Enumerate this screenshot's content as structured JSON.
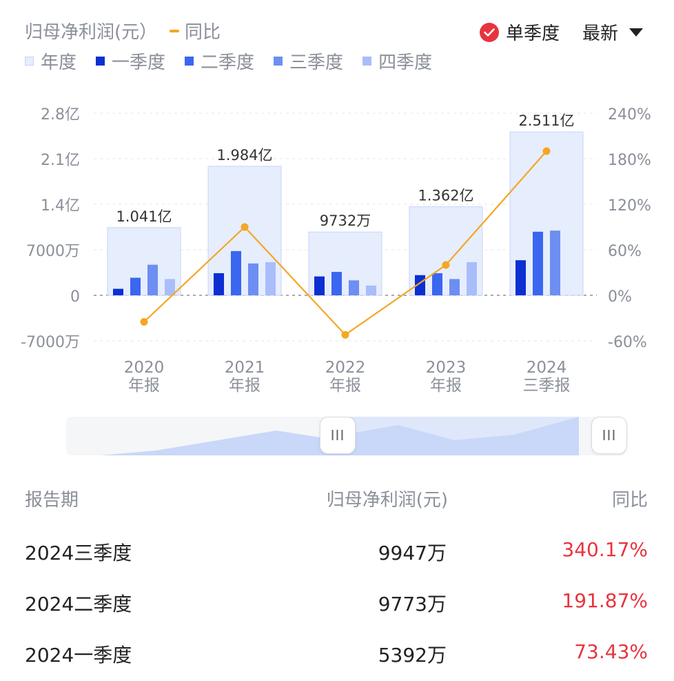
{
  "header": {
    "title": "归母净利润(元）",
    "yoy_label": "同比",
    "toggle_label": "单季度",
    "latest_label": "最新"
  },
  "legend": [
    {
      "label": "年度",
      "color": "#e6edfd"
    },
    {
      "label": "一季度",
      "color": "#0b2fd1"
    },
    {
      "label": "二季度",
      "color": "#3a66f0"
    },
    {
      "label": "三季度",
      "color": "#6d8ef2"
    },
    {
      "label": "四季度",
      "color": "#a9bdfa"
    }
  ],
  "colors": {
    "annual": "#e6edfd",
    "annual_border": "#c7d4fb",
    "q1": "#0b2fd1",
    "q2": "#3a66f0",
    "q3": "#6d8ef2",
    "q4": "#a9bdfa",
    "line": "#f5a623",
    "positive": "#e8343f"
  },
  "chart_data": {
    "type": "bar",
    "categories": [
      [
        "2020",
        "年报"
      ],
      [
        "2021",
        "年报"
      ],
      [
        "2022",
        "年报"
      ],
      [
        "2023",
        "年报"
      ],
      [
        "2024",
        "三季报"
      ]
    ],
    "annual_values": [
      10410,
      19840,
      9732,
      13620,
      25110
    ],
    "annual_labels": [
      "1.041亿",
      "1.984亿",
      "9732万",
      "1.362亿",
      "2.511亿"
    ],
    "series": [
      {
        "name": "一季度",
        "values": [
          1000,
          3400,
          2900,
          3100,
          5392
        ]
      },
      {
        "name": "二季度",
        "values": [
          2700,
          6800,
          3600,
          3400,
          9773
        ]
      },
      {
        "name": "三季度",
        "values": [
          4700,
          4900,
          2300,
          2500,
          9947
        ]
      },
      {
        "name": "四季度",
        "values": [
          2500,
          5100,
          1500,
          5100,
          null
        ]
      }
    ],
    "yoy": {
      "name": "同比",
      "values": [
        -35,
        90,
        -52,
        40,
        190
      ]
    },
    "y_left": {
      "ticks": [
        "2.8亿",
        "2.1亿",
        "1.4亿",
        "7000万",
        "0",
        "-7000万"
      ],
      "range": [
        -7000,
        28000
      ],
      "unit": "万"
    },
    "y_right": {
      "ticks": [
        "240%",
        "180%",
        "120%",
        "60%",
        "0%",
        "-60%"
      ],
      "range": [
        -60,
        240
      ]
    },
    "grid": true
  },
  "table": {
    "headers": {
      "period": "报告期",
      "value": "归母净利润(元)",
      "yoy": "同比"
    },
    "rows": [
      {
        "period": "2024三季度",
        "value": "9947万",
        "yoy": "340.17%"
      },
      {
        "period": "2024二季度",
        "value": "9773万",
        "yoy": "191.87%"
      },
      {
        "period": "2024一季度",
        "value": "5392万",
        "yoy": "73.43%"
      }
    ]
  },
  "slider": {
    "handle_icon": "drag-handle-icon",
    "handle_glyph": "III"
  }
}
